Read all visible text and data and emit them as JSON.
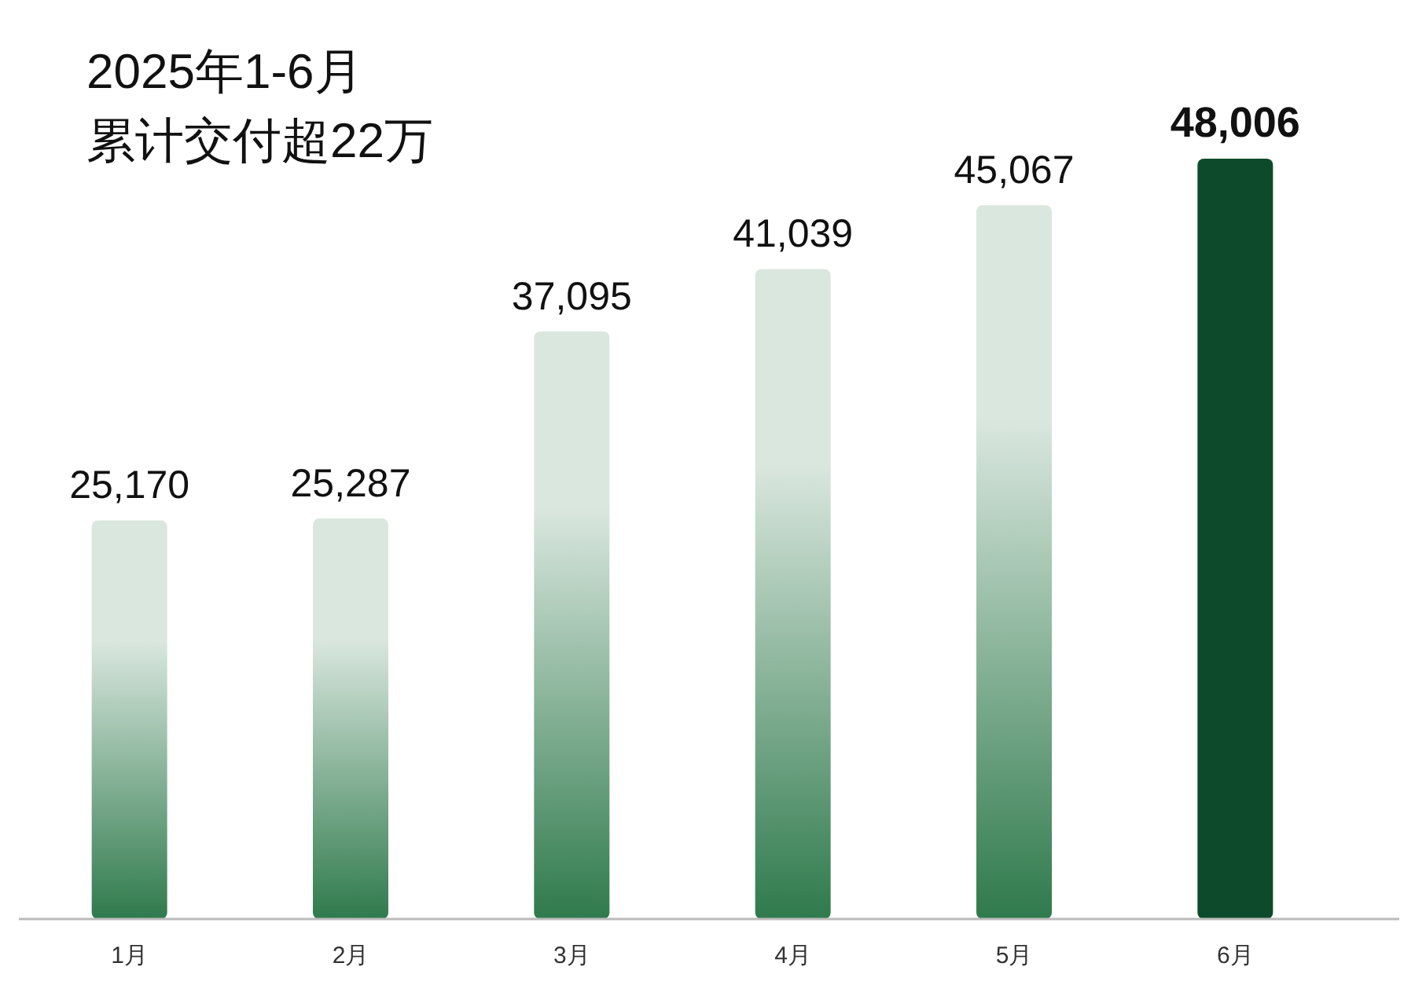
{
  "chart_data": {
    "type": "bar",
    "title": "2025年1-6月",
    "subtitle": "累计交付超22万",
    "categories": [
      "1月",
      "2月",
      "3月",
      "4月",
      "5月",
      "6月"
    ],
    "values": [
      25170,
      25287,
      37095,
      41039,
      45067,
      48006
    ],
    "colors": [
      "#2f7a4c",
      "#2f7a4c",
      "#2f7a4c",
      "#2f7a4c",
      "#2f7a4c",
      "#0d4a2b"
    ],
    "value_labels": [
      "25,170",
      "25,287",
      "37,095",
      "41,039",
      "45,067",
      "48,006"
    ]
  }
}
